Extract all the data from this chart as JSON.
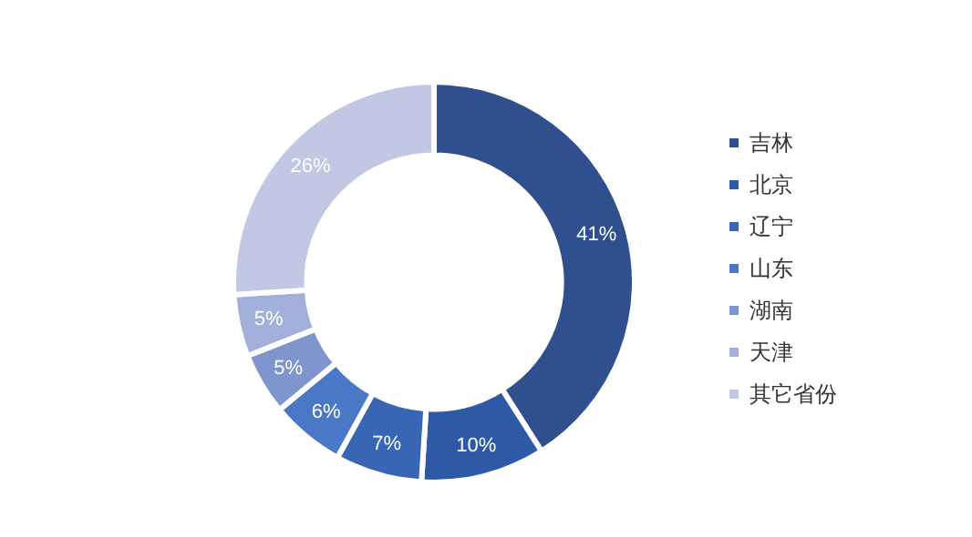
{
  "chart_data": {
    "type": "donut",
    "categories": [
      "吉林",
      "北京",
      "辽宁",
      "山东",
      "湖南",
      "天津",
      "其它省份"
    ],
    "values": [
      41,
      10,
      7,
      6,
      5,
      5,
      26
    ],
    "colors": [
      "#2f4f8e",
      "#2e59a6",
      "#3866b5",
      "#4a78c6",
      "#7e95ce",
      "#a1afda",
      "#c2c8e3"
    ],
    "value_labels": [
      "41%",
      "10%",
      "7%",
      "6%",
      "5%",
      "5%",
      "26%"
    ],
    "legend": "right"
  }
}
